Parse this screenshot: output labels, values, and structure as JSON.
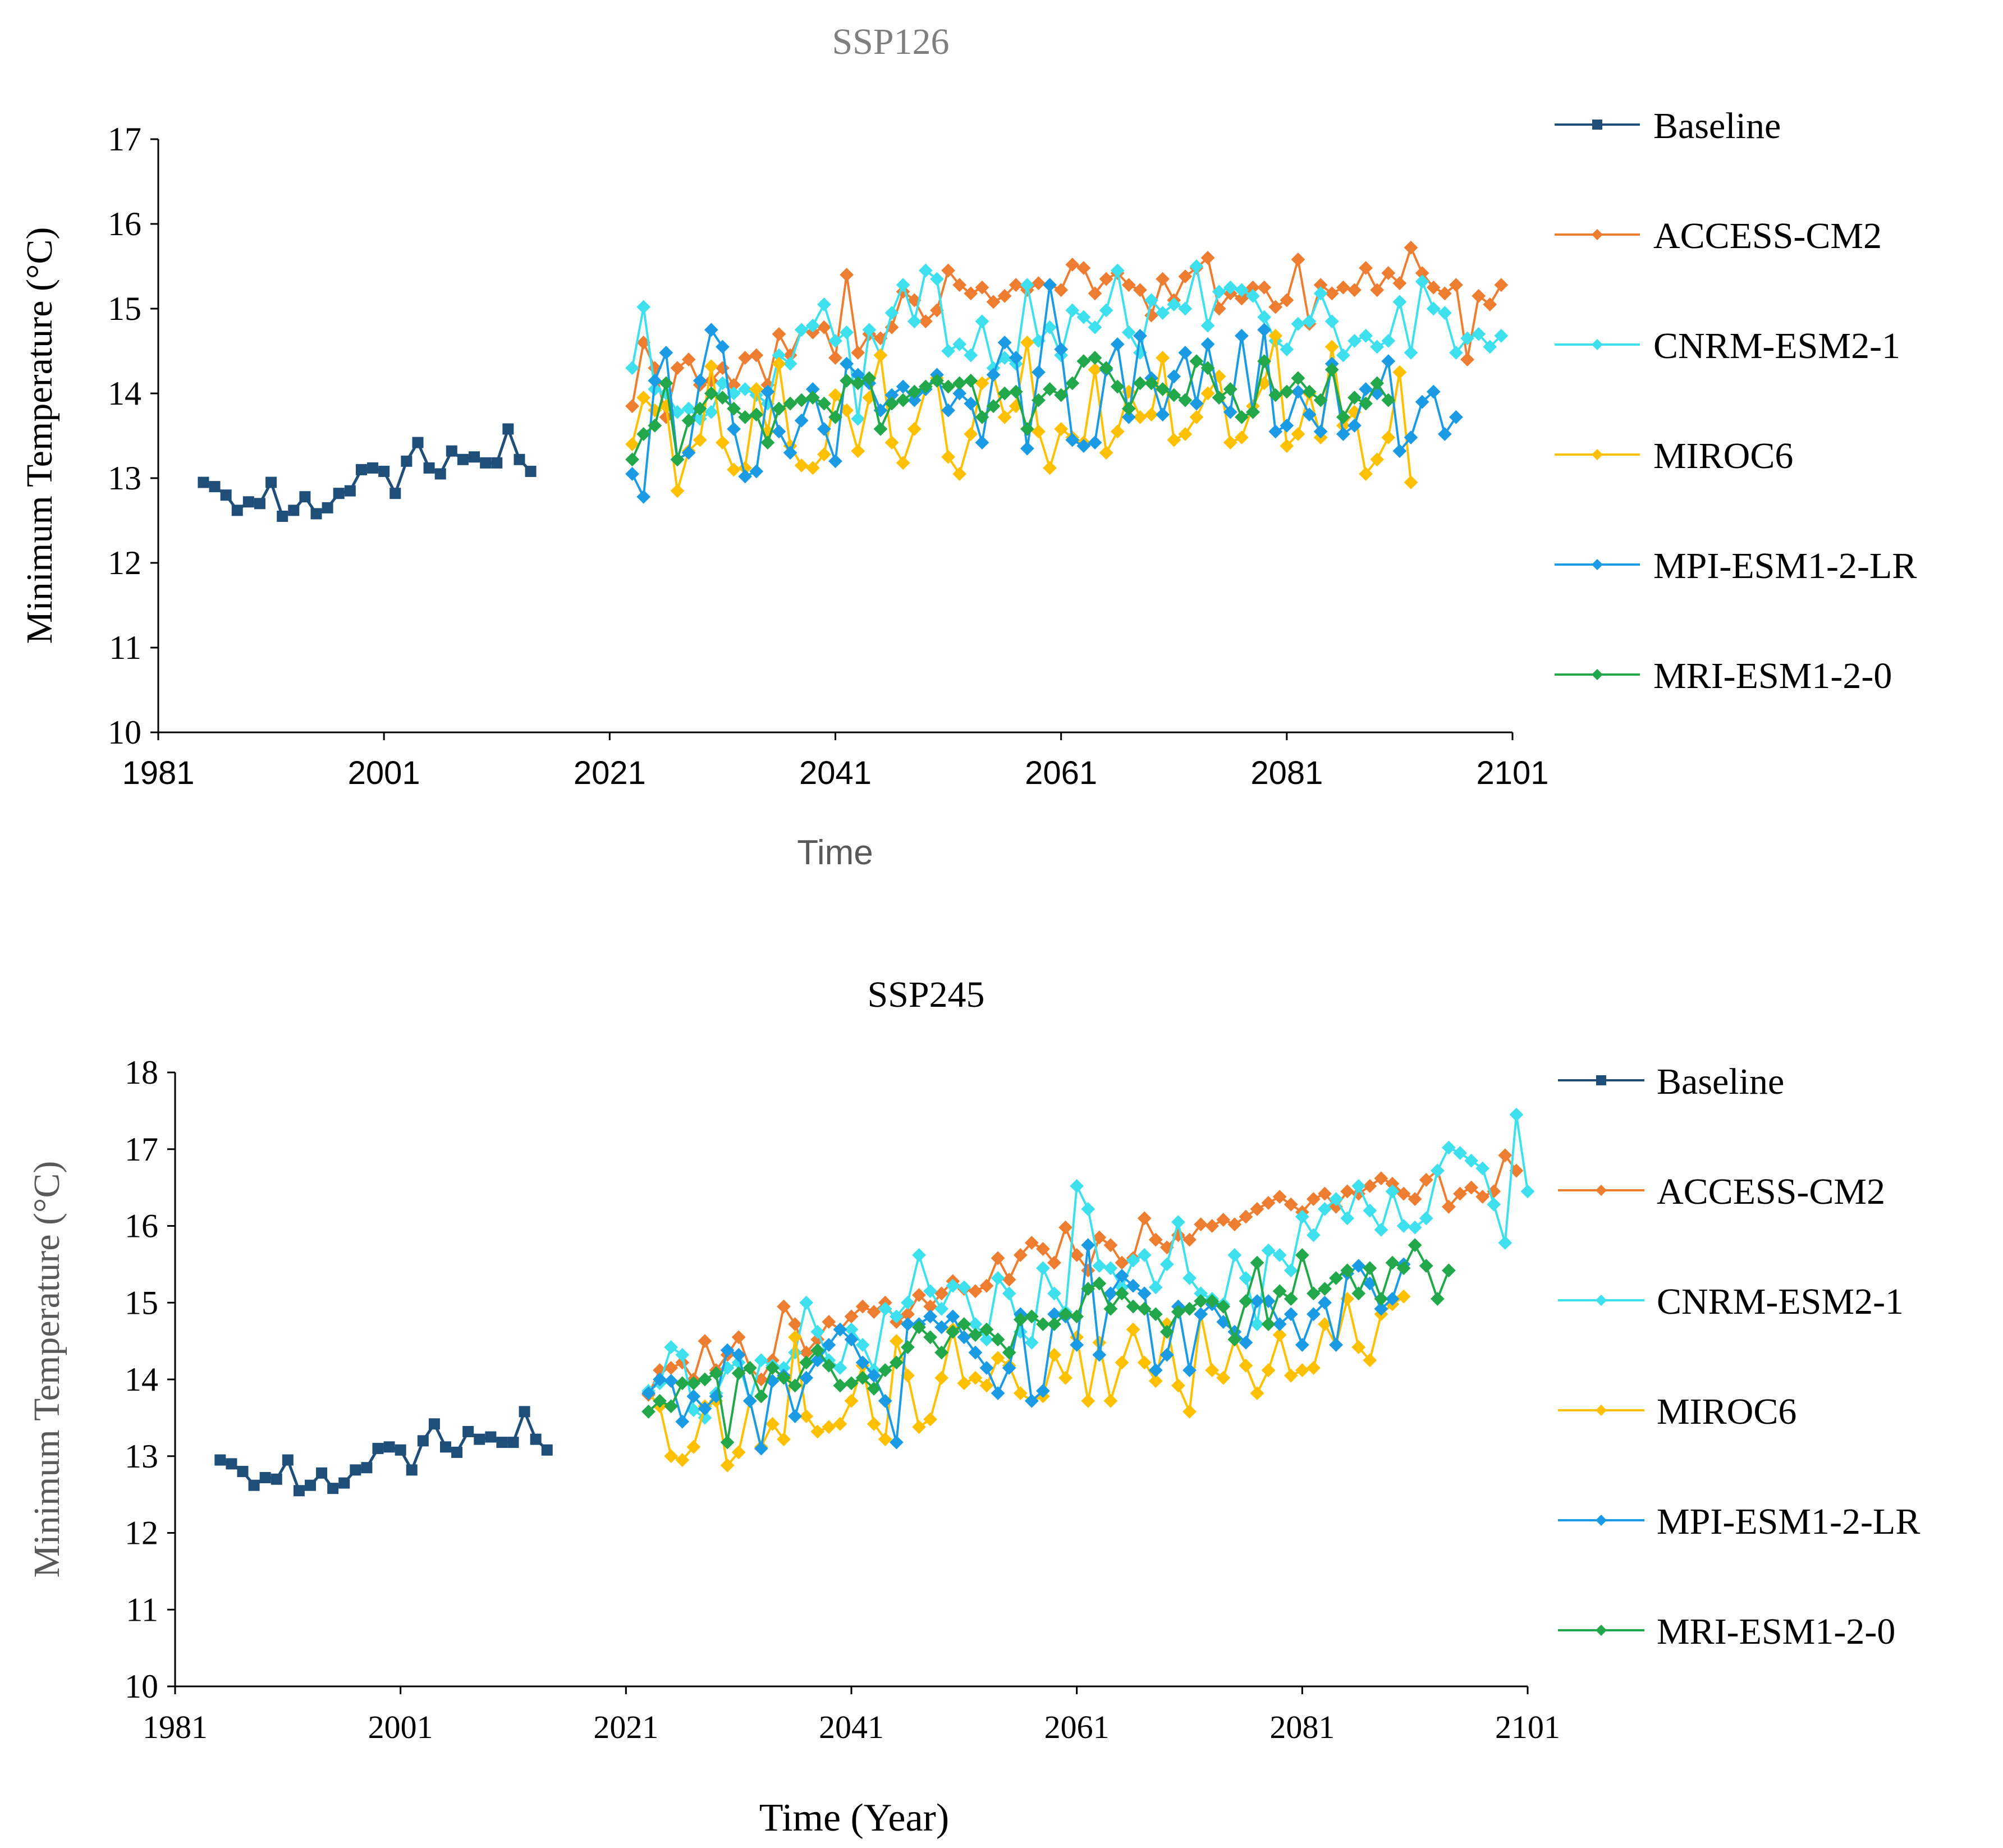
{
  "colors": {
    "baseline": "#1f4e79",
    "access": "#ed7d31",
    "cnrm": "#3fe0ee",
    "miroc": "#ffc000",
    "mpi": "#1b9be3",
    "mri": "#22a84a"
  },
  "chart_data": [
    {
      "type": "line",
      "title": "SSP126",
      "xlabel": "Time",
      "ylabel": "Minimum Temperature (°C)",
      "xlim": [
        1981,
        2101
      ],
      "ylim": [
        10,
        17
      ],
      "xticks": [
        "1981",
        "2001",
        "2021",
        "2041",
        "2061",
        "2081",
        "2101"
      ],
      "yticks": [
        "10",
        "11",
        "12",
        "13",
        "14",
        "15",
        "16",
        "17"
      ],
      "legend_position": "right",
      "series": [
        {
          "name": "Baseline",
          "key": "baseline",
          "marker": "square",
          "start": 1985,
          "values": [
            12.95,
            12.9,
            12.8,
            12.62,
            12.72,
            12.7,
            12.95,
            12.55,
            12.62,
            12.78,
            12.58,
            12.65,
            12.82,
            12.85,
            13.1,
            13.12,
            13.08,
            12.82,
            13.2,
            13.42,
            13.12,
            13.05,
            13.32,
            13.22,
            13.25,
            13.18,
            13.18,
            13.58,
            13.22,
            13.08
          ]
        },
        {
          "name": "ACCESS-CM2",
          "key": "access",
          "marker": "diamond",
          "start": 2023,
          "values": [
            13.85,
            14.6,
            14.3,
            13.72,
            14.3,
            14.4,
            14.1,
            14.15,
            14.3,
            14.1,
            14.42,
            14.45,
            14.1,
            14.7,
            14.45,
            14.75,
            14.72,
            14.78,
            14.42,
            15.4,
            14.48,
            14.7,
            14.65,
            14.78,
            15.2,
            15.1,
            14.85,
            14.98,
            15.45,
            15.28,
            15.18,
            15.25,
            15.08,
            15.15,
            15.28,
            15.22,
            15.3,
            15.28,
            15.22,
            15.52,
            15.48,
            15.18,
            15.35,
            15.42,
            15.28,
            15.22,
            14.92,
            15.35,
            15.1,
            15.38,
            15.48,
            15.6,
            15.0,
            15.18,
            15.12,
            15.25,
            15.25,
            15.02,
            15.1,
            15.58,
            14.82,
            15.28,
            15.18,
            15.25,
            15.22,
            15.48,
            15.22,
            15.42,
            15.3,
            15.72,
            15.42,
            15.25,
            15.18,
            15.28,
            14.4,
            15.15,
            15.05,
            15.28
          ]
        },
        {
          "name": "CNRM-ESM2-1",
          "key": "cnrm",
          "marker": "diamond",
          "start": 2023,
          "values": [
            14.3,
            15.02,
            14.05,
            14.0,
            13.78,
            13.82,
            13.7,
            13.78,
            14.12,
            14.0,
            14.05,
            13.98,
            13.88,
            14.45,
            14.35,
            14.75,
            14.8,
            15.05,
            14.62,
            14.72,
            13.7,
            14.75,
            14.45,
            14.95,
            15.28,
            14.85,
            15.45,
            15.35,
            14.5,
            14.58,
            14.45,
            14.85,
            14.3,
            14.42,
            14.35,
            15.28,
            14.62,
            14.78,
            14.45,
            14.98,
            14.9,
            14.78,
            14.98,
            15.45,
            14.72,
            14.48,
            15.1,
            14.95,
            15.05,
            15.0,
            15.5,
            14.8,
            15.2,
            15.25,
            15.22,
            15.15,
            14.9,
            14.62,
            14.52,
            14.82,
            14.85,
            15.18,
            14.85,
            14.45,
            14.62,
            14.68,
            14.55,
            14.62,
            15.08,
            14.48,
            15.32,
            15.0,
            14.95,
            14.48,
            14.65,
            14.7,
            14.55,
            14.68
          ]
        },
        {
          "name": "MIROC6",
          "key": "miroc",
          "marker": "diamond",
          "start": 2023,
          "values": [
            13.4,
            13.95,
            13.8,
            13.85,
            12.85,
            13.32,
            13.45,
            14.32,
            13.42,
            13.1,
            13.12,
            14.05,
            13.55,
            14.35,
            13.38,
            13.15,
            13.12,
            13.28,
            13.98,
            13.8,
            13.32,
            13.95,
            14.45,
            13.42,
            13.18,
            13.58,
            14.05,
            14.18,
            13.25,
            13.05,
            13.52,
            14.12,
            14.22,
            13.72,
            13.85,
            14.6,
            13.55,
            13.12,
            13.58,
            13.48,
            13.42,
            14.28,
            13.3,
            13.55,
            14.02,
            13.72,
            13.75,
            14.42,
            13.45,
            13.52,
            13.72,
            14.0,
            14.2,
            13.42,
            13.48,
            13.85,
            14.12,
            14.68,
            13.38,
            13.52,
            14.0,
            13.48,
            14.55,
            13.62,
            13.78,
            13.05,
            13.22,
            13.48,
            14.25,
            12.95
          ]
        },
        {
          "name": "MPI-ESM1-2-LR",
          "key": "mpi",
          "marker": "diamond",
          "start": 2023,
          "values": [
            13.05,
            12.78,
            14.15,
            14.48,
            13.22,
            13.3,
            14.15,
            14.75,
            14.55,
            13.58,
            13.02,
            13.08,
            14.02,
            13.55,
            13.3,
            13.68,
            14.05,
            13.58,
            13.2,
            14.35,
            14.22,
            14.12,
            13.8,
            13.98,
            14.08,
            13.92,
            14.05,
            14.22,
            13.8,
            14.0,
            13.88,
            13.42,
            14.22,
            14.6,
            14.42,
            13.35,
            14.25,
            15.28,
            14.52,
            13.45,
            13.38,
            13.42,
            14.28,
            14.58,
            13.72,
            14.68,
            14.18,
            13.75,
            14.2,
            14.48,
            13.88,
            14.58,
            13.95,
            13.78,
            14.68,
            13.78,
            14.75,
            13.55,
            13.62,
            14.02,
            13.75,
            13.55,
            14.35,
            13.52,
            13.62,
            14.05,
            14.0,
            14.38,
            13.32,
            13.48,
            13.9,
            14.02,
            13.52,
            13.72
          ]
        },
        {
          "name": "MRI-ESM1-2-0",
          "key": "mri",
          "marker": "diamond",
          "start": 2023,
          "values": [
            13.22,
            13.52,
            13.62,
            14.12,
            13.22,
            13.68,
            13.82,
            14.0,
            13.95,
            13.82,
            13.72,
            13.75,
            13.42,
            13.82,
            13.88,
            13.92,
            13.95,
            13.88,
            13.72,
            14.15,
            14.12,
            14.18,
            13.58,
            13.88,
            13.92,
            14.02,
            14.08,
            14.15,
            14.08,
            14.12,
            14.15,
            13.72,
            13.85,
            14.0,
            14.02,
            13.58,
            13.92,
            14.05,
            13.98,
            14.12,
            14.38,
            14.42,
            14.3,
            14.08,
            13.82,
            14.12,
            14.12,
            14.05,
            13.98,
            13.92,
            14.38,
            14.3,
            13.95,
            14.05,
            13.72,
            13.78,
            14.38,
            13.98,
            14.02,
            14.18,
            14.02,
            13.92,
            14.28,
            13.72,
            13.95,
            13.88,
            14.12,
            13.92
          ]
        }
      ]
    },
    {
      "type": "line",
      "title": "SSP245",
      "xlabel": "Time (Year)",
      "ylabel": "Minimum Temperature (°C)",
      "xlim": [
        1981,
        2101
      ],
      "ylim": [
        10,
        18
      ],
      "xticks": [
        "1981",
        "2001",
        "2021",
        "2041",
        "2061",
        "2081",
        "2101"
      ],
      "yticks": [
        "10",
        "11",
        "12",
        "13",
        "14",
        "15",
        "16",
        "17",
        "18"
      ],
      "legend_position": "right",
      "series": [
        {
          "name": "Baseline",
          "key": "baseline",
          "marker": "square",
          "start": 1985,
          "values": [
            12.95,
            12.9,
            12.8,
            12.62,
            12.72,
            12.7,
            12.95,
            12.55,
            12.62,
            12.78,
            12.58,
            12.65,
            12.82,
            12.85,
            13.1,
            13.12,
            13.08,
            12.82,
            13.2,
            13.42,
            13.12,
            13.05,
            13.32,
            13.22,
            13.25,
            13.18,
            13.18,
            13.58,
            13.22,
            13.08
          ]
        },
        {
          "name": "ACCESS-CM2",
          "key": "access",
          "marker": "diamond",
          "start": 2023,
          "values": [
            13.8,
            14.12,
            14.15,
            14.22,
            14.0,
            14.5,
            14.12,
            14.32,
            14.55,
            14.15,
            14.0,
            14.25,
            14.95,
            14.72,
            14.35,
            14.52,
            14.75,
            14.65,
            14.82,
            14.95,
            14.88,
            15.0,
            14.75,
            14.85,
            15.1,
            14.95,
            15.12,
            15.28,
            15.18,
            15.15,
            15.22,
            15.58,
            15.3,
            15.62,
            15.78,
            15.7,
            15.52,
            15.98,
            15.62,
            15.42,
            15.85,
            15.75,
            15.52,
            15.58,
            16.1,
            15.82,
            15.72,
            15.88,
            15.82,
            16.02,
            16.0,
            16.08,
            16.02,
            16.12,
            16.22,
            16.3,
            16.38,
            16.28,
            16.18,
            16.35,
            16.42,
            16.25,
            16.45,
            16.42,
            16.52,
            16.62,
            16.55,
            16.42,
            16.35,
            16.6,
            16.72,
            16.25,
            16.42,
            16.5,
            16.38,
            16.45,
            16.92,
            16.72
          ]
        },
        {
          "name": "CNRM-ESM2-1",
          "key": "cnrm",
          "marker": "diamond",
          "start": 2023,
          "values": [
            13.85,
            13.95,
            14.42,
            14.32,
            13.6,
            13.5,
            13.82,
            14.15,
            14.22,
            13.72,
            14.25,
            14.18,
            14.15,
            14.35,
            15.0,
            14.62,
            14.25,
            14.15,
            14.65,
            14.45,
            14.12,
            14.92,
            14.82,
            15.0,
            15.62,
            15.15,
            14.92,
            15.22,
            15.2,
            14.72,
            14.52,
            15.32,
            15.12,
            14.62,
            14.48,
            15.45,
            15.12,
            14.88,
            16.52,
            16.22,
            15.48,
            15.45,
            15.2,
            15.55,
            15.62,
            15.2,
            15.5,
            16.05,
            15.32,
            15.12,
            15.05,
            14.98,
            15.62,
            15.32,
            14.72,
            15.68,
            15.62,
            15.42,
            16.12,
            15.88,
            16.22,
            16.35,
            16.1,
            16.52,
            16.2,
            15.95,
            16.45,
            16.0,
            15.98,
            16.1,
            16.72,
            17.02,
            16.95,
            16.85,
            16.75,
            16.28,
            15.78,
            17.45,
            16.45
          ]
        },
        {
          "name": "MIROC6",
          "key": "miroc",
          "marker": "diamond",
          "start": 2023,
          "values": [
            13.82,
            13.65,
            13.0,
            12.95,
            13.12,
            13.65,
            13.72,
            12.88,
            13.05,
            13.72,
            13.12,
            13.42,
            13.22,
            14.55,
            13.52,
            13.32,
            13.38,
            13.42,
            13.72,
            14.18,
            13.42,
            13.22,
            14.5,
            14.05,
            13.38,
            13.48,
            14.02,
            14.65,
            13.95,
            14.02,
            13.92,
            14.28,
            14.18,
            13.82,
            13.72,
            13.78,
            14.32,
            14.02,
            14.55,
            13.72,
            14.48,
            13.72,
            14.22,
            14.65,
            14.22,
            13.98,
            14.72,
            13.92,
            13.58,
            14.85,
            14.12,
            14.02,
            14.52,
            14.18,
            13.82,
            14.12,
            14.58,
            14.05,
            14.12,
            14.15,
            14.72,
            14.45,
            15.05,
            14.42,
            14.25,
            14.85,
            14.98,
            15.08
          ]
        },
        {
          "name": "MPI-ESM1-2-LR",
          "key": "mpi",
          "marker": "diamond",
          "start": 2023,
          "values": [
            13.82,
            14.0,
            13.98,
            13.45,
            13.78,
            13.62,
            13.78,
            14.38,
            14.32,
            13.72,
            13.1,
            13.98,
            14.05,
            13.52,
            14.02,
            14.25,
            14.45,
            14.65,
            14.52,
            14.22,
            14.05,
            13.72,
            13.18,
            14.72,
            14.72,
            14.82,
            14.68,
            14.82,
            14.55,
            14.35,
            14.15,
            13.82,
            14.15,
            14.85,
            13.72,
            13.85,
            14.85,
            14.82,
            14.45,
            15.75,
            14.32,
            15.12,
            15.35,
            15.22,
            15.12,
            14.12,
            14.32,
            14.95,
            14.12,
            14.85,
            14.98,
            14.75,
            14.62,
            14.48,
            15.02,
            15.02,
            14.72,
            14.85,
            14.45,
            14.85,
            15.0,
            14.45,
            15.38,
            15.48,
            15.25,
            14.92,
            15.05,
            15.5
          ]
        },
        {
          "name": "MRI-ESM1-2-0",
          "key": "mri",
          "marker": "diamond",
          "start": 2023,
          "values": [
            13.58,
            13.72,
            13.65,
            13.95,
            13.95,
            14.0,
            14.08,
            13.18,
            14.08,
            14.15,
            13.78,
            14.15,
            14.02,
            13.92,
            14.22,
            14.38,
            14.18,
            13.92,
            13.95,
            14.02,
            13.88,
            14.12,
            14.22,
            14.42,
            14.68,
            14.55,
            14.35,
            14.62,
            14.72,
            14.58,
            14.65,
            14.52,
            14.35,
            14.78,
            14.82,
            14.72,
            14.72,
            14.85,
            14.82,
            15.18,
            15.25,
            14.92,
            15.12,
            14.95,
            14.92,
            14.85,
            14.62,
            14.88,
            14.92,
            15.02,
            15.02,
            14.95,
            14.52,
            15.02,
            15.52,
            14.72,
            15.15,
            15.05,
            15.62,
            15.12,
            15.18,
            15.32,
            15.42,
            15.12,
            15.45,
            15.05,
            15.52,
            15.45,
            15.75,
            15.48,
            15.05,
            15.42
          ]
        }
      ]
    }
  ]
}
